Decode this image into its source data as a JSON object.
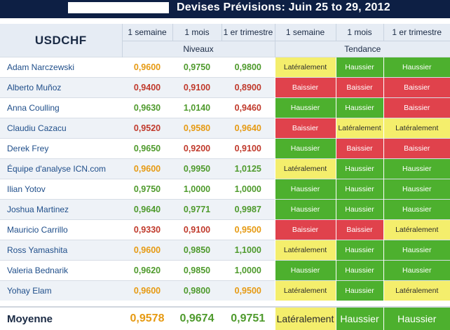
{
  "header": {
    "title": "Devises Prévisions: Juin 25 to 29, 2012"
  },
  "table": {
    "pair": "USDCHF",
    "col_headers": [
      "1 semaine",
      "1 mois",
      "1 er trimestre",
      "1 semaine",
      "1 mois",
      "1 er trimestre"
    ],
    "group_headers": {
      "levels": "Niveaux",
      "trend": "Tendance"
    },
    "colors": {
      "orange": "#e69a12",
      "green": "#4e9a2c",
      "red": "#c0392b",
      "trend_lat": "#f4ee6c",
      "trend_up": "#4db02e",
      "trend_down": "#e0424c"
    },
    "rows": [
      {
        "name": "Adam Narczewski",
        "levels": [
          "0,9600",
          "0,9750",
          "0,9800"
        ],
        "level_colors": [
          "orange",
          "green",
          "green"
        ],
        "trend": [
          "Latéralement",
          "Haussier",
          "Haussier"
        ]
      },
      {
        "name": "Alberto Muñoz",
        "levels": [
          "0,9400",
          "0,9100",
          "0,8900"
        ],
        "level_colors": [
          "red",
          "red",
          "red"
        ],
        "trend": [
          "Baissier",
          "Baissier",
          "Baissier"
        ]
      },
      {
        "name": "Anna Coulling",
        "levels": [
          "0,9630",
          "1,0140",
          "0,9460"
        ],
        "level_colors": [
          "green",
          "green",
          "red"
        ],
        "trend": [
          "Haussier",
          "Haussier",
          "Baissier"
        ]
      },
      {
        "name": "Claudiu Cazacu",
        "levels": [
          "0,9520",
          "0,9580",
          "0,9640"
        ],
        "level_colors": [
          "red",
          "orange",
          "orange"
        ],
        "trend": [
          "Baissier",
          "Latéralement",
          "Latéralement"
        ]
      },
      {
        "name": "Derek Frey",
        "levels": [
          "0,9650",
          "0,9200",
          "0,9100"
        ],
        "level_colors": [
          "green",
          "red",
          "red"
        ],
        "trend": [
          "Haussier",
          "Baissier",
          "Baissier"
        ]
      },
      {
        "name": "Équipe d'analyse ICN.com",
        "levels": [
          "0,9600",
          "0,9950",
          "1,0125"
        ],
        "level_colors": [
          "orange",
          "green",
          "green"
        ],
        "trend": [
          "Latéralement",
          "Haussier",
          "Haussier"
        ]
      },
      {
        "name": "Ilian Yotov",
        "levels": [
          "0,9750",
          "1,0000",
          "1,0000"
        ],
        "level_colors": [
          "green",
          "green",
          "green"
        ],
        "trend": [
          "Haussier",
          "Haussier",
          "Haussier"
        ]
      },
      {
        "name": "Joshua Martinez",
        "levels": [
          "0,9640",
          "0,9771",
          "0,9987"
        ],
        "level_colors": [
          "green",
          "green",
          "green"
        ],
        "trend": [
          "Haussier",
          "Haussier",
          "Haussier"
        ]
      },
      {
        "name": "Mauricio Carrillo",
        "levels": [
          "0,9330",
          "0,9100",
          "0,9500"
        ],
        "level_colors": [
          "red",
          "red",
          "orange"
        ],
        "trend": [
          "Baissier",
          "Baissier",
          "Latéralement"
        ]
      },
      {
        "name": "Ross Yamashita",
        "levels": [
          "0,9600",
          "0,9850",
          "1,1000"
        ],
        "level_colors": [
          "orange",
          "green",
          "green"
        ],
        "trend": [
          "Latéralement",
          "Haussier",
          "Haussier"
        ]
      },
      {
        "name": "Valeria Bednarik",
        "levels": [
          "0,9620",
          "0,9850",
          "1,0000"
        ],
        "level_colors": [
          "green",
          "green",
          "green"
        ],
        "trend": [
          "Haussier",
          "Haussier",
          "Haussier"
        ]
      },
      {
        "name": "Yohay Elam",
        "levels": [
          "0,9600",
          "0,9800",
          "0,9500"
        ],
        "level_colors": [
          "orange",
          "green",
          "orange"
        ],
        "trend": [
          "Latéralement",
          "Haussier",
          "Latéralement"
        ]
      }
    ],
    "average": {
      "label": "Moyenne",
      "levels": [
        "0,9578",
        "0,9674",
        "0,9751"
      ],
      "level_colors": [
        "orange",
        "green",
        "green"
      ],
      "trend": [
        "Latéralement",
        "Haussier",
        "Haussier"
      ]
    }
  }
}
